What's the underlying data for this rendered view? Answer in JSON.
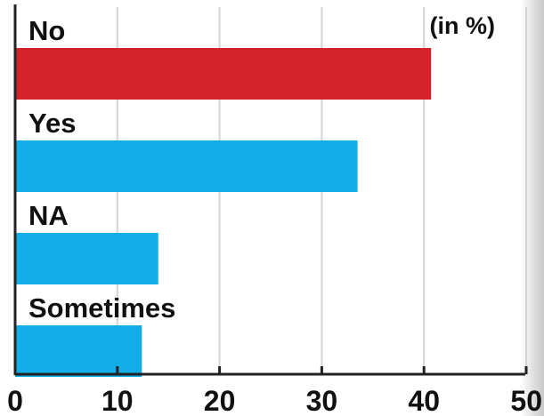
{
  "chart_data": {
    "type": "bar",
    "orientation": "horizontal",
    "unit_note": "(in %)",
    "categories": [
      "No",
      "Yes",
      "NA",
      "Sometimes"
    ],
    "values": [
      40.7,
      33.5,
      14.0,
      12.4
    ],
    "bar_colors": [
      "#d2232a",
      "#13aee8",
      "#13aee8",
      "#13aee8"
    ],
    "xlim": [
      0,
      50
    ],
    "xticks": [
      0,
      10,
      20,
      30,
      40,
      50
    ],
    "xtick_labels": [
      "0",
      "10",
      "20",
      "30",
      "40",
      "50"
    ],
    "grid": "vertical",
    "title": "",
    "xlabel": "",
    "ylabel": ""
  }
}
